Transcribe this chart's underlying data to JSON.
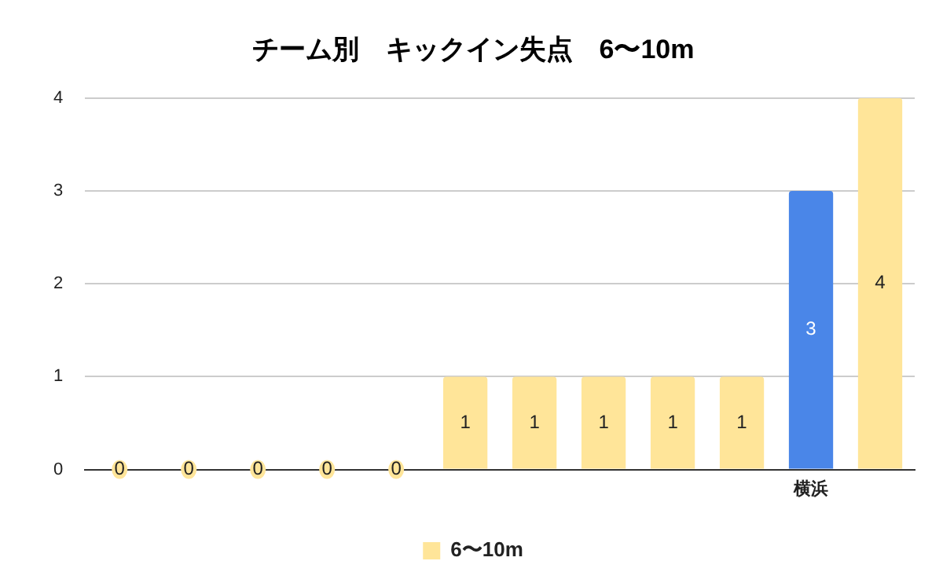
{
  "chart_data": {
    "type": "bar",
    "title": "チーム別　キックイン失点　6〜10m",
    "categories": [
      null,
      null,
      null,
      null,
      null,
      null,
      null,
      null,
      null,
      null,
      "横浜",
      null
    ],
    "series": [
      {
        "name": "6〜10m",
        "color": "#ffe599",
        "colors": [
          "#ffe599",
          "#ffe599",
          "#ffe599",
          "#ffe599",
          "#ffe599",
          "#ffe599",
          "#ffe599",
          "#ffe599",
          "#ffe599",
          "#ffe599",
          "#4a86e8",
          "#ffe599"
        ],
        "values": [
          0,
          0,
          0,
          0,
          0,
          1,
          1,
          1,
          1,
          1,
          3,
          4
        ]
      }
    ],
    "ylim": [
      0,
      4
    ],
    "yticks": [
      0,
      1,
      2,
      3,
      4
    ],
    "grid": "y",
    "legend": "bottom",
    "data_labels": true
  }
}
